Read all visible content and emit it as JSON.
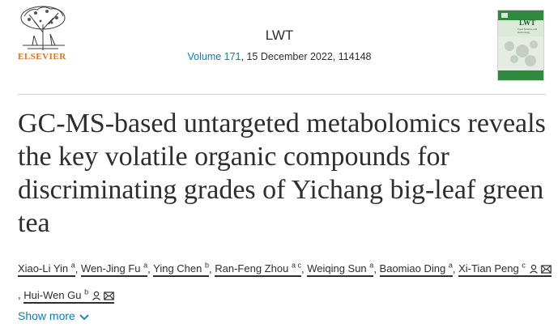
{
  "publisher": {
    "name": "ELSEVIER"
  },
  "journal": {
    "name": "LWT",
    "volume_link": "Volume 171",
    "issue_rest": ", 15 December 2022, 114148",
    "cover_title": "LWT",
    "cover_subtitle": "Food Science and Technology"
  },
  "article": {
    "title": "GC-MS-based untargeted metabolomics reveals the key volatile organic compounds for discriminating grades of Yichang big-leaf green tea"
  },
  "authors": [
    {
      "name": "Xiao-Li Yin",
      "sup": "a",
      "icons": []
    },
    {
      "name": "Wen-Jing Fu",
      "sup": "a",
      "icons": []
    },
    {
      "name": "Ying Chen",
      "sup": "b",
      "icons": []
    },
    {
      "name": "Ran-Feng Zhou",
      "sup": "a c",
      "icons": []
    },
    {
      "name": "Weiqing Sun",
      "sup": "a",
      "icons": []
    },
    {
      "name": "Baomiao Ding",
      "sup": "a",
      "icons": []
    },
    {
      "name": "Xi-Tian Peng",
      "sup": "c",
      "icons": [
        "person-icon",
        "mail-icon"
      ]
    },
    {
      "name": "Hui-Wen Gu",
      "sup": "b",
      "icons": [
        "person-icon",
        "mail-icon"
      ]
    }
  ],
  "show_more": {
    "label": "Show more"
  },
  "colors": {
    "link": "#0c7dbb",
    "publisher_orange": "#e9711c",
    "text": "#2e2e2e"
  }
}
